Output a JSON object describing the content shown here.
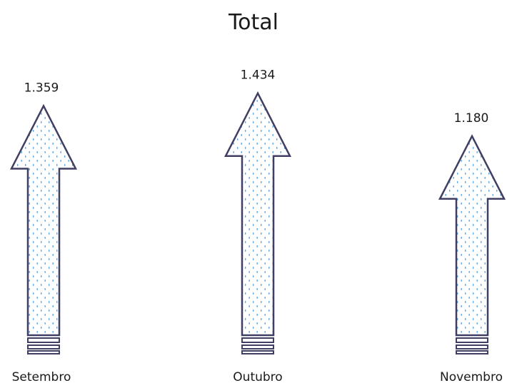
{
  "chart_data": {
    "type": "bar",
    "title": "Total",
    "xlabel": "",
    "ylabel": "",
    "categories": [
      "Setembro",
      "Outubro",
      "Novembro"
    ],
    "values": [
      1359,
      1434,
      1180
    ],
    "value_labels": [
      "1.359",
      "1.434",
      "1.180"
    ],
    "ylim": [
      0,
      1500
    ],
    "grid": false,
    "legend": "none",
    "mark": "upward-arrow",
    "colors": {
      "arrow_stroke": "#3f3f63",
      "arrow_fill": "#ffffff",
      "dot_pattern": "#5aa9e6"
    }
  }
}
